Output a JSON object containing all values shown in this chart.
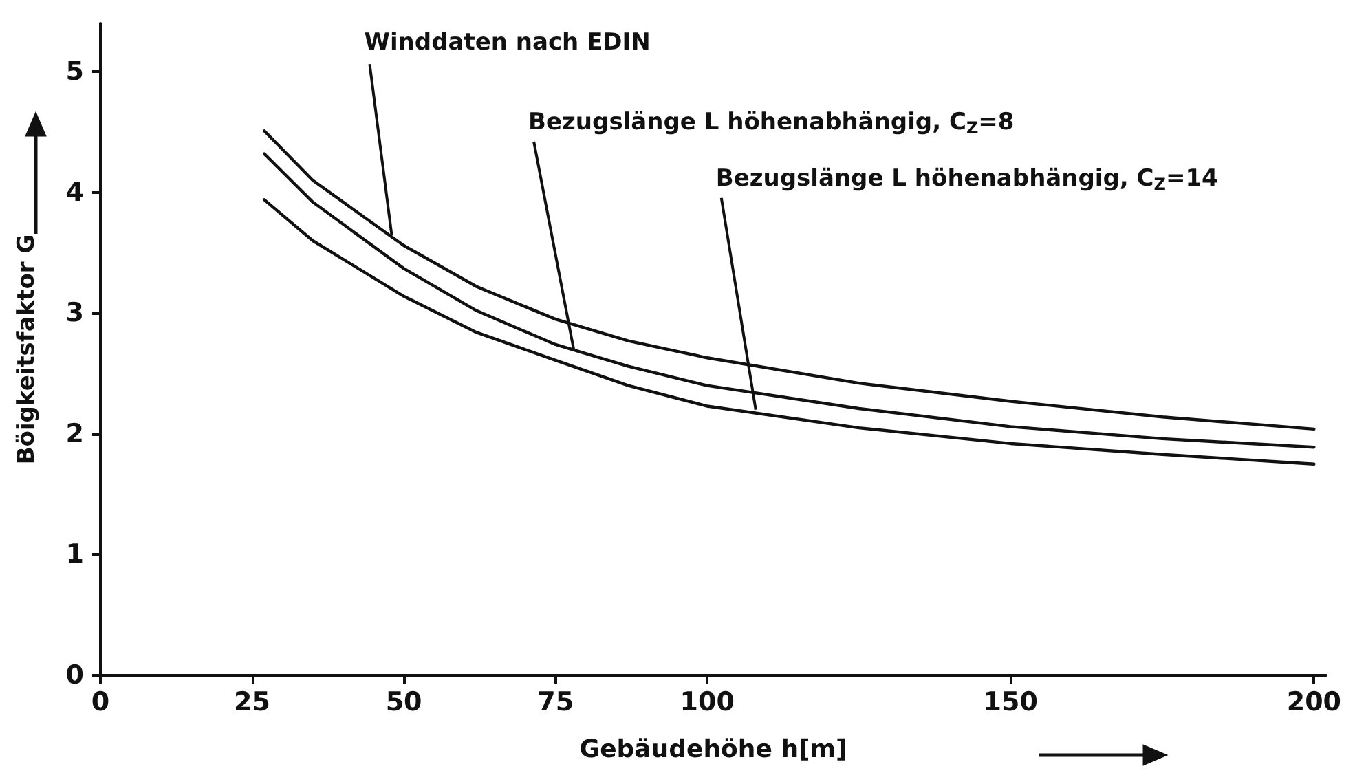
{
  "chart_data": {
    "type": "line",
    "xlabel": "Gebäudehöhe h[m]",
    "ylabel": "Böigkeitsfaktor G",
    "x": [
      27,
      35,
      50,
      62,
      75,
      87,
      100,
      125,
      150,
      175,
      200
    ],
    "series": [
      {
        "color": "#111111",
        "values": [
          4.51,
          4.1,
          3.56,
          3.22,
          2.95,
          2.77,
          2.63,
          2.42,
          2.27,
          2.14,
          2.04
        ]
      },
      {
        "color": "#111111",
        "values": [
          4.32,
          3.92,
          3.37,
          3.02,
          2.74,
          2.56,
          2.4,
          2.21,
          2.06,
          1.96,
          1.89
        ]
      },
      {
        "color": "#111111",
        "values": [
          3.94,
          3.6,
          3.14,
          2.84,
          2.61,
          2.4,
          2.23,
          2.05,
          1.92,
          1.83,
          1.75
        ]
      }
    ],
    "annotations": [
      {
        "text": "Winddaten nach EDIN",
        "x": 48,
        "y": 3.65
      },
      {
        "text": "Bezugslänge L höhenabhängig, C$_{Z}$=8",
        "x": 78,
        "y": 2.7
      },
      {
        "text": "Bezugslänge L höhenabhängig, C$_{Z}$=14",
        "x": 108,
        "y": 2.2
      }
    ],
    "xlim": [
      0,
      202
    ],
    "xticks": [
      0,
      25,
      50,
      75,
      100,
      150,
      200
    ],
    "ylim": [
      0,
      5.4
    ],
    "yticks": [
      0,
      1,
      2,
      3,
      4,
      5
    ],
    "grid": false,
    "marker": "none",
    "line_style": "solid"
  }
}
